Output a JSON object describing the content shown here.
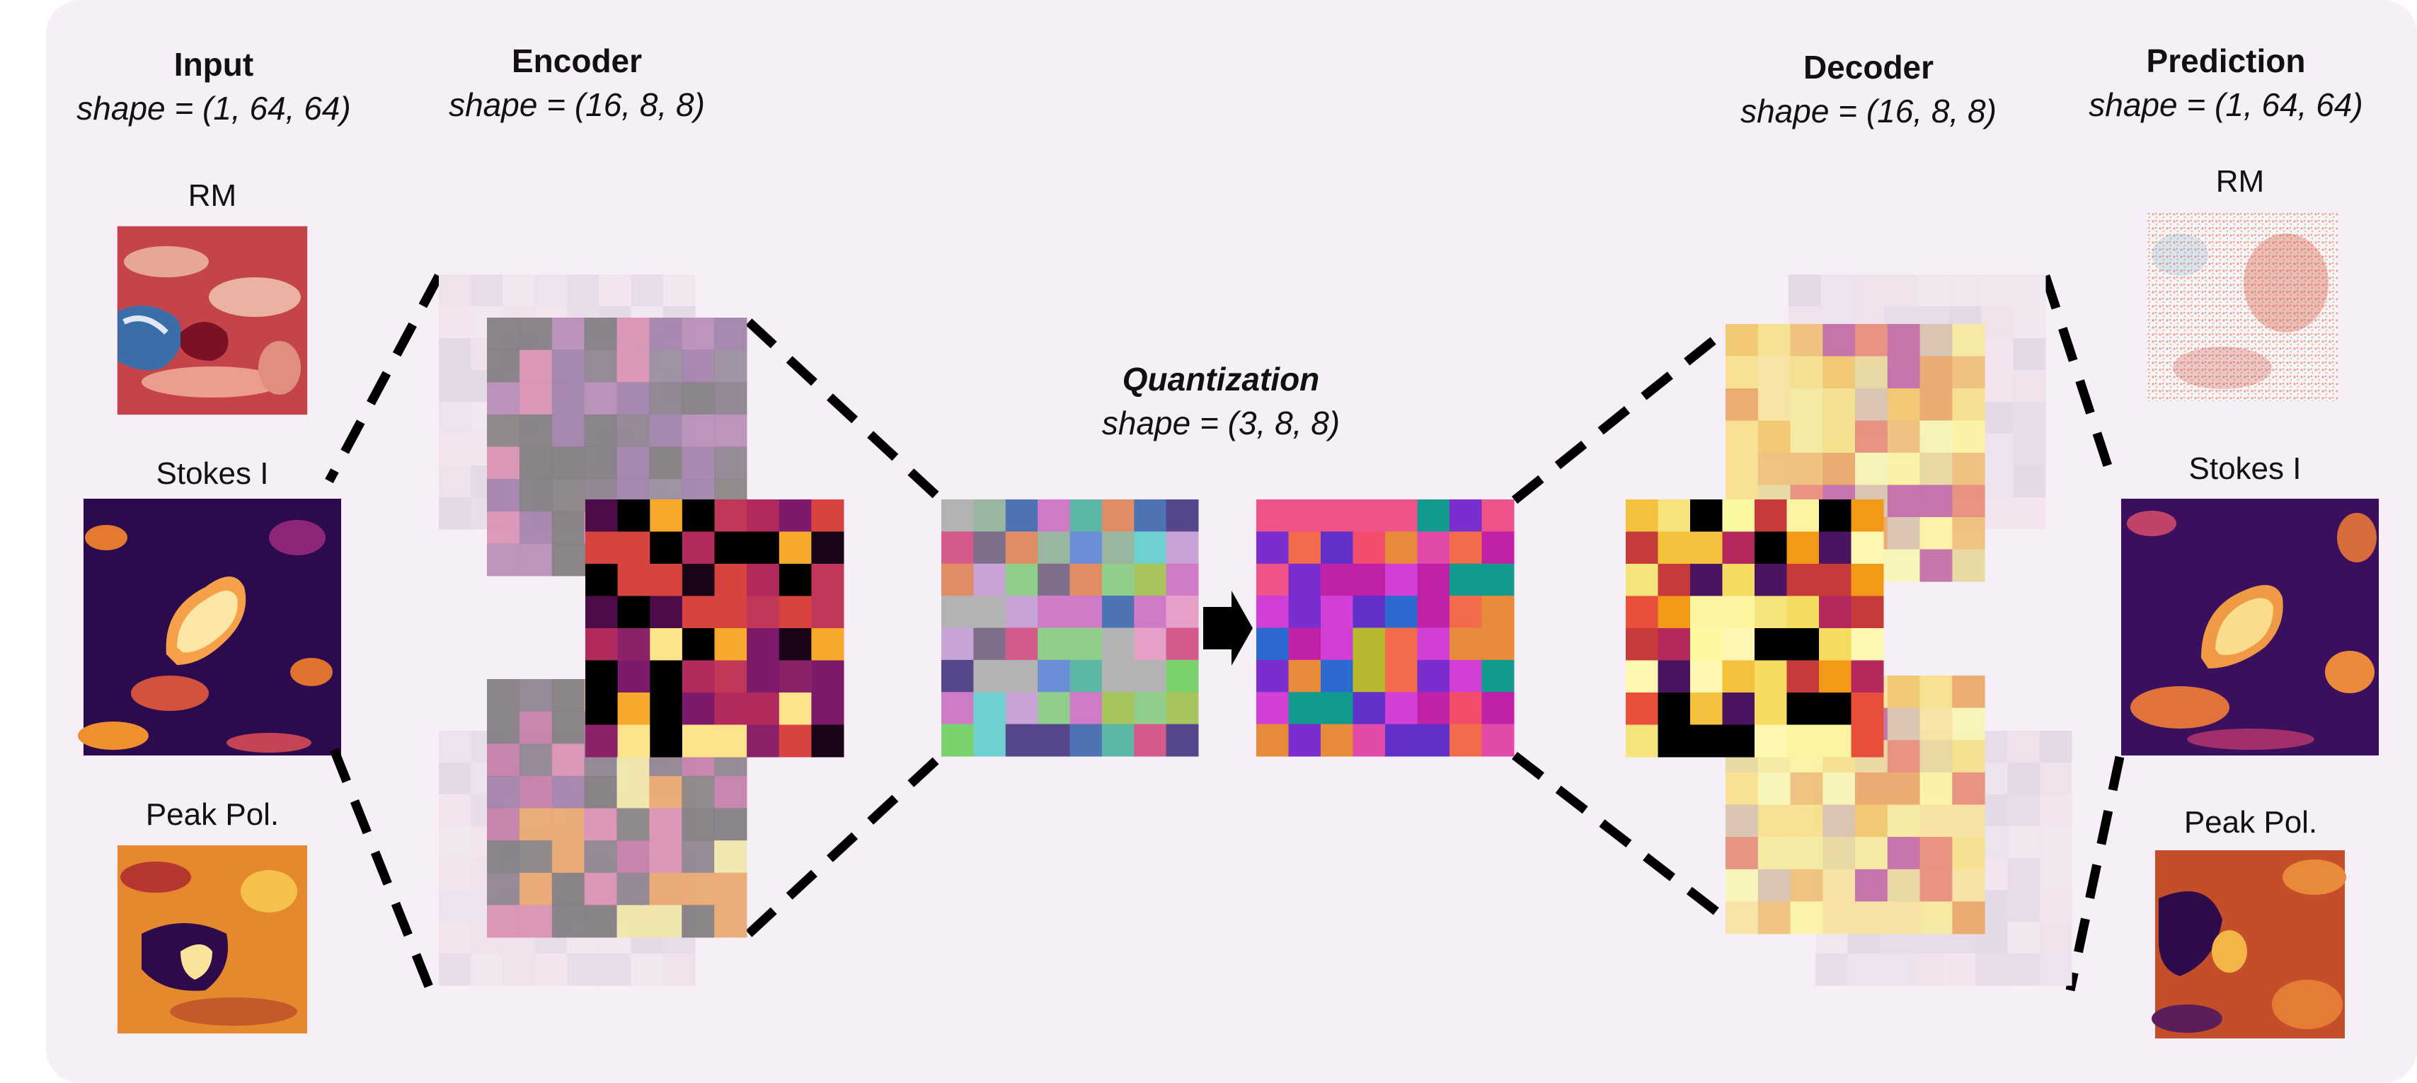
{
  "headers": {
    "input": {
      "title": "Input",
      "shape": "shape = (1, 64, 64)"
    },
    "encoder": {
      "title": "Encoder",
      "shape": "shape = (16, 8, 8)"
    },
    "quantization": {
      "title": "Quantization",
      "shape": "shape = (3, 8, 8)"
    },
    "decoder": {
      "title": "Decoder",
      "shape": "shape = (16, 8, 8)"
    },
    "prediction": {
      "title": "Prediction",
      "shape": "shape = (1, 64, 64)"
    }
  },
  "input_panels": {
    "rm": "RM",
    "stokes": "Stokes I",
    "peak": "Peak Pol."
  },
  "prediction_panels": {
    "rm": "RM",
    "stokes": "Stokes I",
    "peak": "Peak Pol."
  },
  "colors": {
    "panel_background": "#f7eff7",
    "dashed_lines": "#000000",
    "arrow": "#000000"
  },
  "icons": [
    "quantization-arrow-icon"
  ]
}
